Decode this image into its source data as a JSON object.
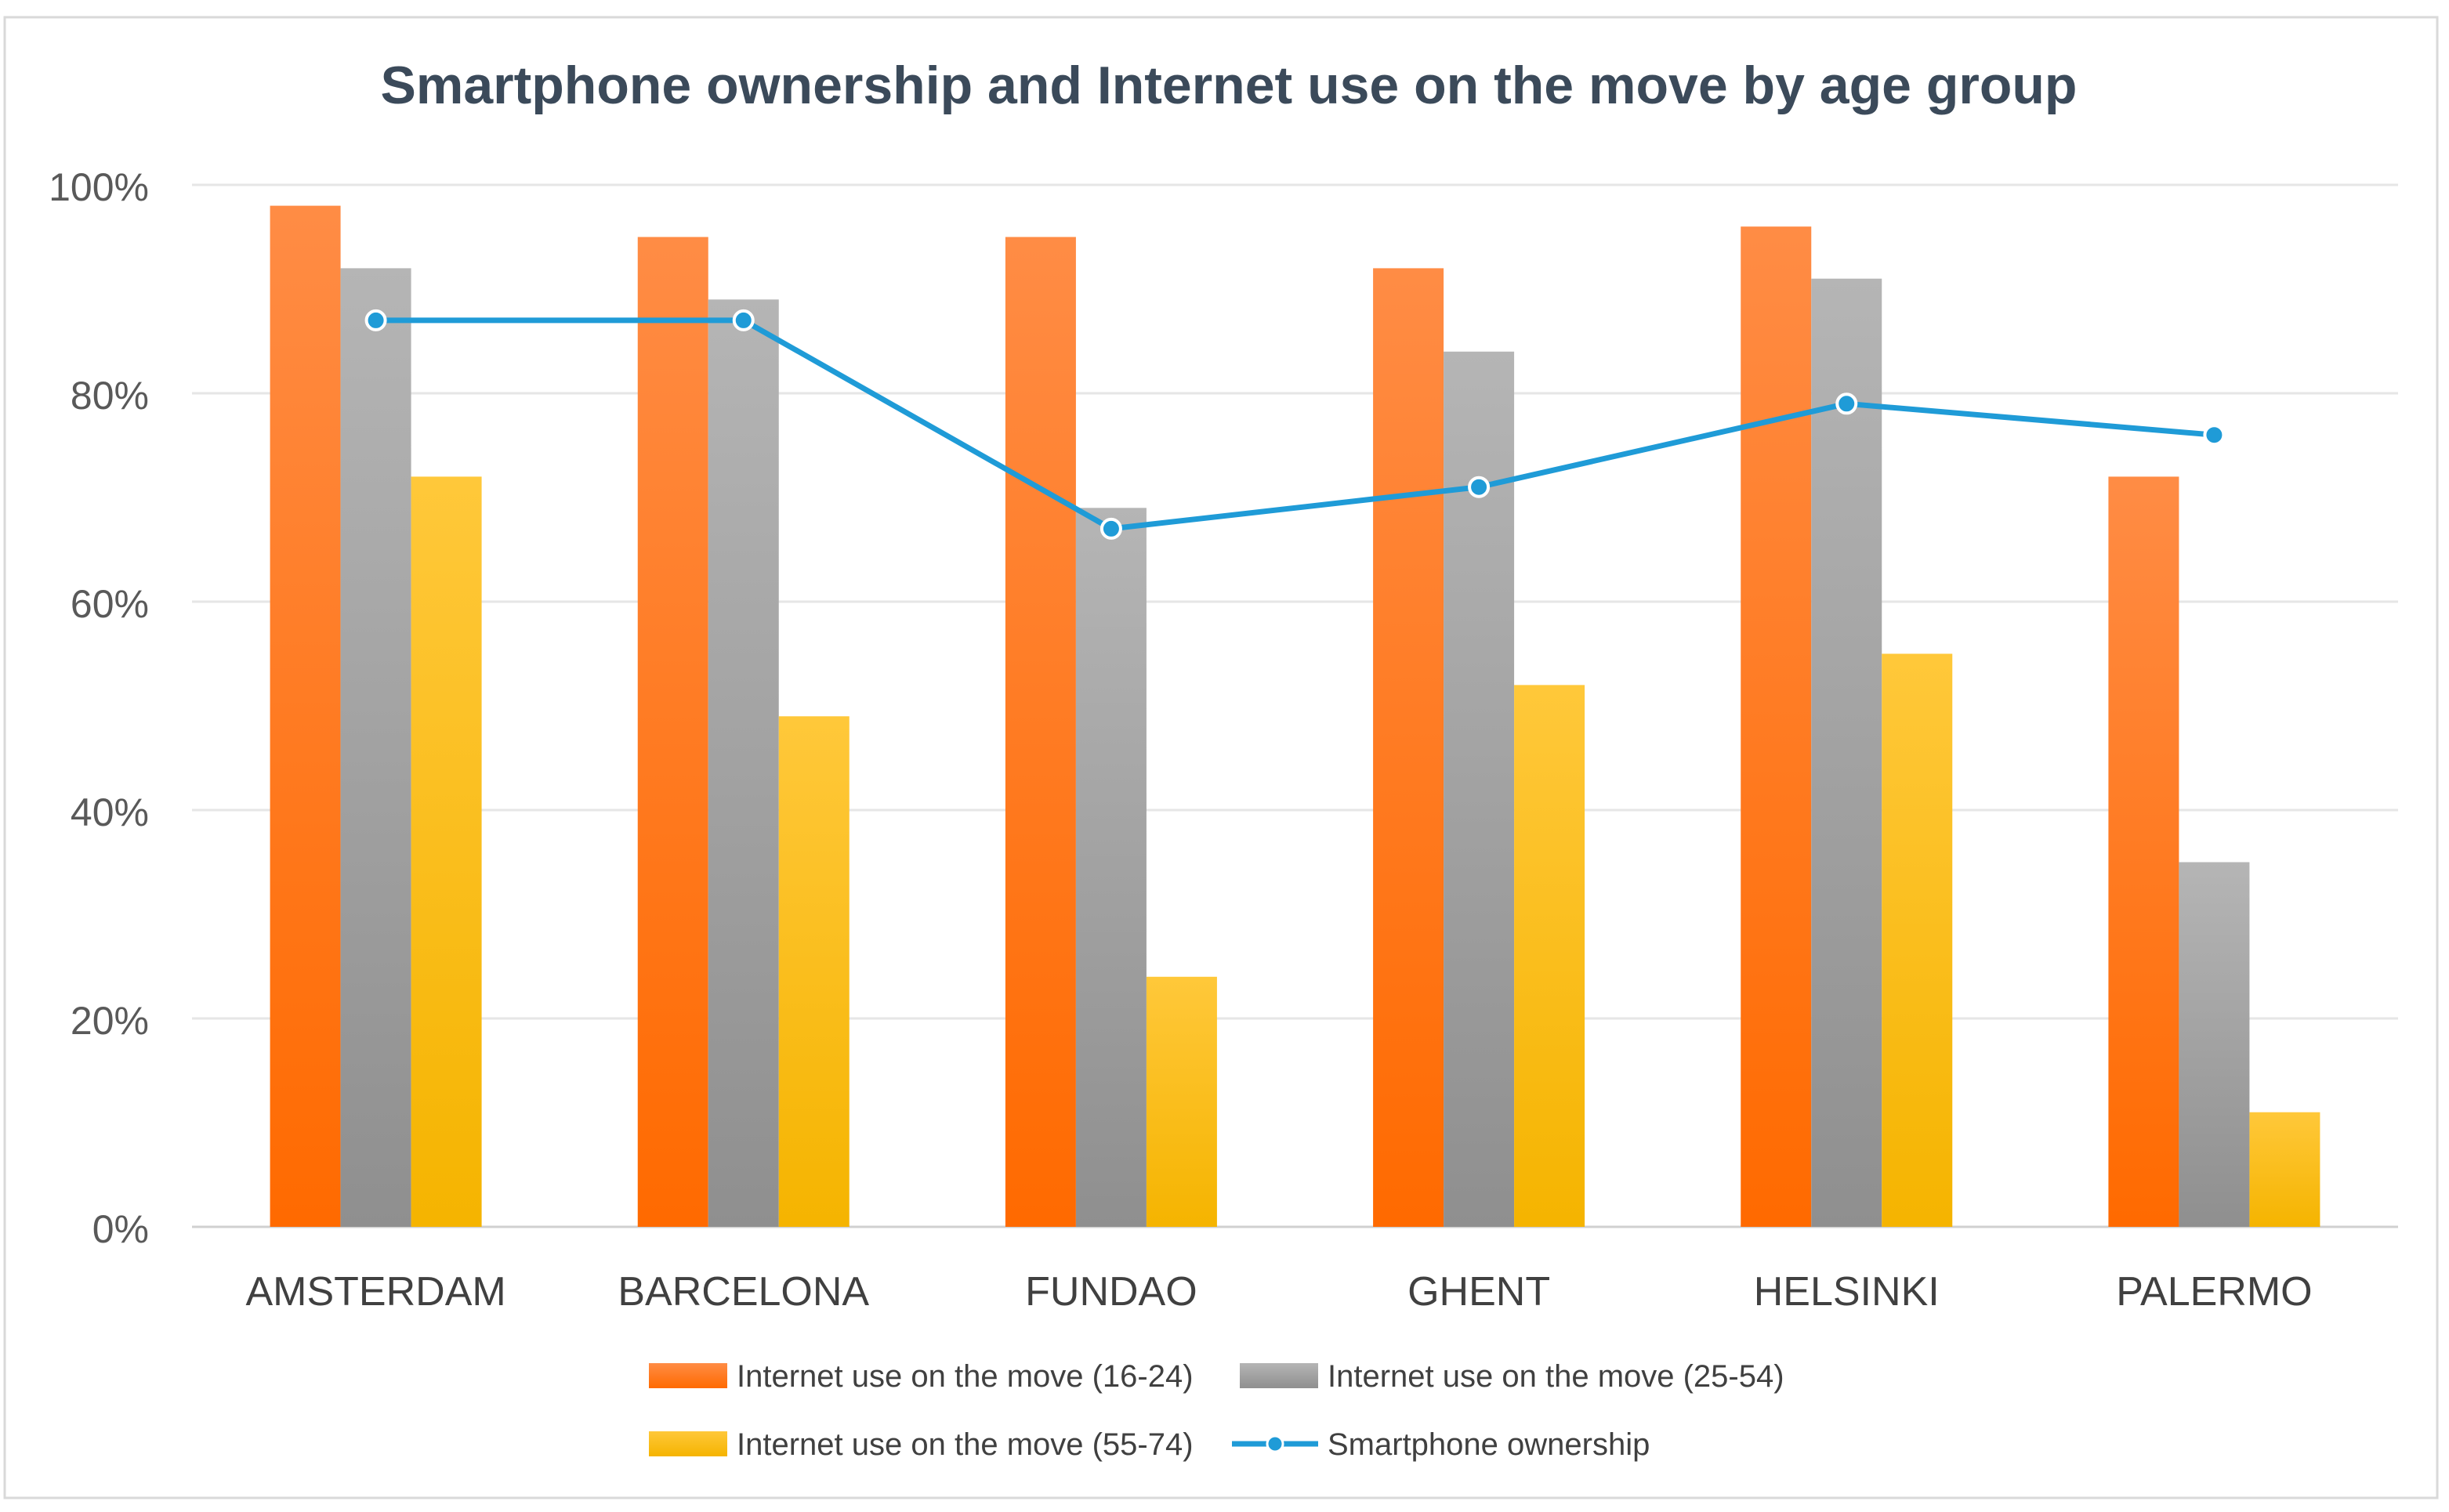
{
  "chart_data": {
    "type": "bar",
    "title": "Smartphone ownership and Internet use on the move by age group",
    "xlabel": "",
    "ylabel": "",
    "ylim": [
      0,
      100
    ],
    "y_ticks": [
      0,
      20,
      40,
      60,
      80,
      100
    ],
    "y_tick_labels": [
      "0%",
      "20%",
      "40%",
      "60%",
      "80%",
      "100%"
    ],
    "grid": true,
    "legend_position": "bottom",
    "categories": [
      "AMSTERDAM",
      "BARCELONA",
      "FUNDAO",
      "GHENT",
      "HELSINKI",
      "PALERMO"
    ],
    "series": [
      {
        "name": "Internet use on the move (16-24)",
        "type": "bar",
        "color": "#ff7518",
        "values": [
          98,
          95,
          95,
          92,
          96,
          72
        ]
      },
      {
        "name": "Internet use on the move (25-54)",
        "type": "bar",
        "color": "#a5a5a5",
        "values": [
          92,
          89,
          69,
          84,
          91,
          35
        ]
      },
      {
        "name": "Internet use on the move (55-74)",
        "type": "bar",
        "color": "#ffc000",
        "values": [
          72,
          49,
          24,
          52,
          55,
          11
        ]
      },
      {
        "name": "Smartphone ownership",
        "type": "line",
        "color": "#1f9bd7",
        "values": [
          87,
          87,
          67,
          71,
          79,
          76
        ]
      }
    ]
  }
}
